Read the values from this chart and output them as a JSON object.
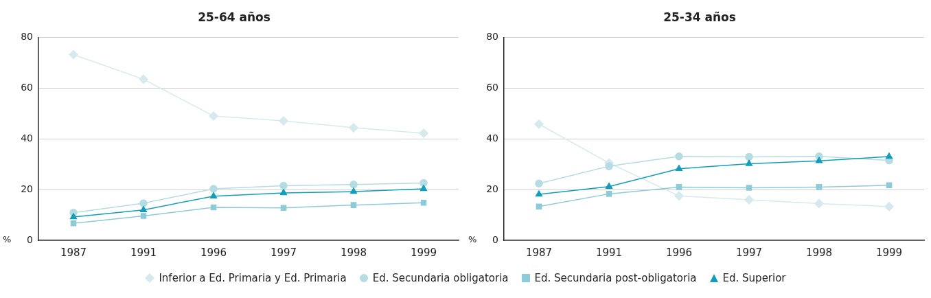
{
  "chart_data": [
    {
      "type": "line",
      "title": "25-64 años",
      "ylabel": "%",
      "categories": [
        "1987",
        "1991",
        "1996",
        "1997",
        "1998",
        "1999"
      ],
      "ylim": [
        0,
        80
      ],
      "yticks": [
        0,
        20,
        40,
        60,
        80
      ],
      "grid": "y",
      "legend": "bottom",
      "line_style": "solid",
      "series": [
        {
          "name": "Inferior a Ed. Primaria y Ed. Primaria",
          "color": "#d6eaee",
          "marker": "diamond",
          "values": [
            73.2,
            63.5,
            49.0,
            47.1,
            44.4,
            42.2
          ]
        },
        {
          "name": "Ed. Secundaria obligatoria",
          "color": "#b5dbe3",
          "marker": "circle",
          "values": [
            10.9,
            14.6,
            20.3,
            21.5,
            22.0,
            22.6
          ]
        },
        {
          "name": "Ed. Secundaria post-obligatoria",
          "color": "#8ecbd9",
          "marker": "square",
          "values": [
            6.7,
            9.6,
            13.0,
            12.8,
            13.9,
            14.8
          ]
        },
        {
          "name": "Ed. Superior",
          "color": "#129ebb",
          "marker": "triangle",
          "values": [
            9.2,
            12.0,
            17.4,
            18.7,
            19.2,
            20.3
          ]
        }
      ]
    },
    {
      "type": "line",
      "title": "25-34 años",
      "ylabel": "%",
      "categories": [
        "1987",
        "1991",
        "1996",
        "1997",
        "1998",
        "1999"
      ],
      "ylim": [
        0,
        80
      ],
      "yticks": [
        0,
        20,
        40,
        60,
        80
      ],
      "grid": "y",
      "line_style": "solid",
      "series": [
        {
          "color": "#d6eaee",
          "marker": "diamond",
          "values": [
            45.8,
            30.5,
            17.5,
            16.0,
            14.5,
            13.3
          ]
        },
        {
          "color": "#b5dbe3",
          "marker": "circle",
          "values": [
            22.4,
            29.2,
            33.1,
            32.9,
            33.1,
            31.5
          ]
        },
        {
          "color": "#8ecbd9",
          "marker": "square",
          "values": [
            13.3,
            18.3,
            21.0,
            20.7,
            21.0,
            21.7
          ]
        },
        {
          "color": "#129ebb",
          "marker": "triangle",
          "values": [
            18.1,
            21.2,
            28.2,
            30.2,
            31.3,
            33.0
          ]
        }
      ]
    }
  ]
}
